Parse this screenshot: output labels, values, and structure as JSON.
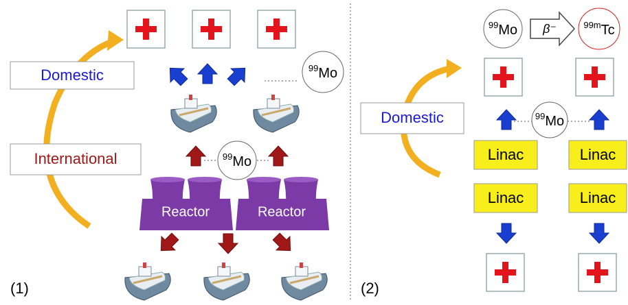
{
  "panel1": {
    "label": "(1)",
    "domestic": "Domestic",
    "international": "International",
    "reactors": [
      "Reactor",
      "Reactor"
    ],
    "isotopes": [
      {
        "mass": "99",
        "element": "Mo"
      },
      {
        "mass": "99",
        "element": "Mo"
      }
    ]
  },
  "panel2": {
    "label": "(2)",
    "domestic": "Domestic",
    "decay": {
      "parent": {
        "mass": "99",
        "element": "Mo"
      },
      "process": "β⁻",
      "daughter": {
        "mass": "99m",
        "element": "Tc"
      }
    },
    "isotope": {
      "mass": "99",
      "element": "Mo"
    },
    "linacs": [
      "Linac",
      "Linac",
      "Linac",
      "Linac"
    ]
  }
}
